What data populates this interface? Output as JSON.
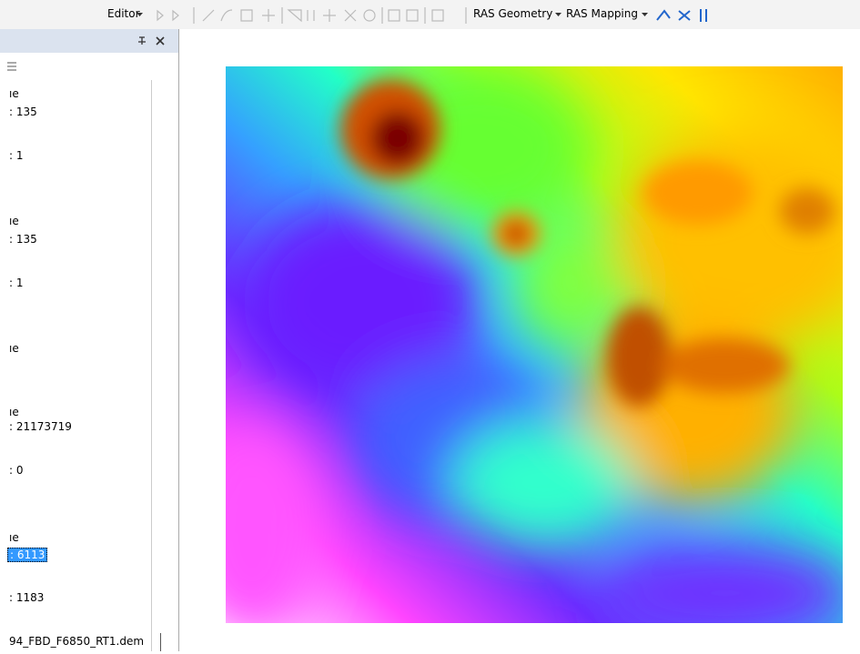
{
  "toolbar": {
    "editor": "Editor",
    "ras_geometry": "RAS Geometry",
    "ras_mapping": "RAS Mapping"
  },
  "panel": {
    "items": [
      "ıe",
      ": 135",
      ": 1",
      "ıe",
      ": 135",
      ": 1",
      "ıe",
      "ıe",
      ": 21173719",
      ": 0",
      "ıe",
      ": 6113",
      ": 1183"
    ],
    "selected_item": 11,
    "layer": "94_FBD_F6850_RT1.dem"
  }
}
